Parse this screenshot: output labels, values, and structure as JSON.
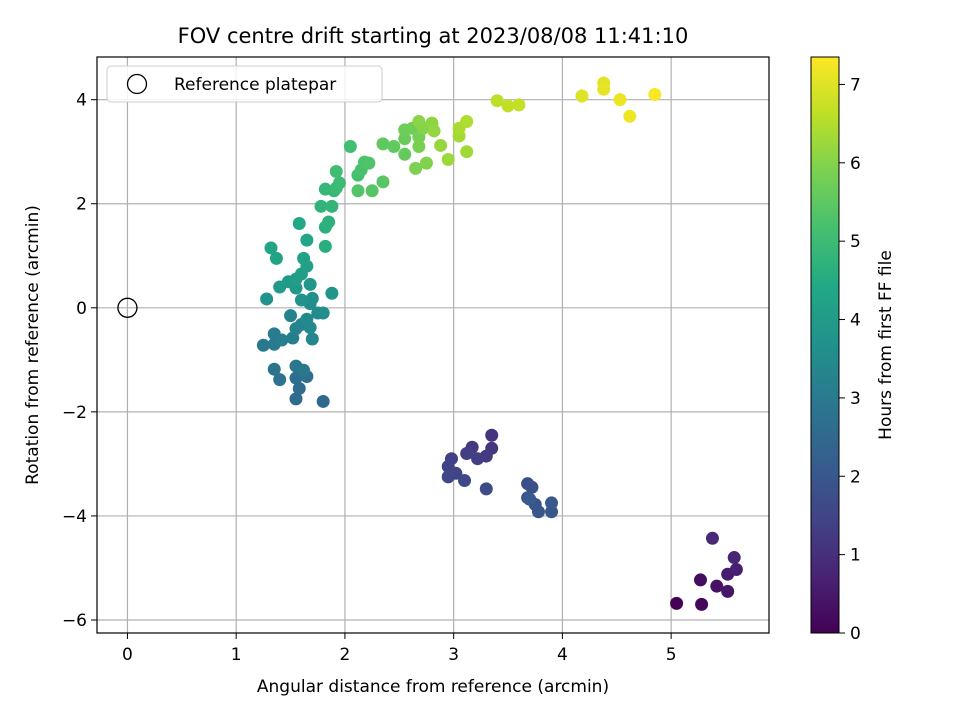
{
  "chart_data": {
    "type": "scatter",
    "title": "FOV centre drift starting at 2023/08/08 11:41:10",
    "xlabel": "Angular distance from reference (arcmin)",
    "ylabel": "Rotation from reference (arcmin)",
    "xlim": [
      -0.28,
      5.9
    ],
    "ylim": [
      -6.25,
      4.82
    ],
    "xticks": [
      0,
      1,
      2,
      3,
      4,
      5
    ],
    "yticks": [
      -6,
      -4,
      -2,
      0,
      2,
      4
    ],
    "xtick_labels": [
      "0",
      "1",
      "2",
      "3",
      "4",
      "5"
    ],
    "ytick_labels": [
      "−6",
      "−4",
      "−2",
      "0",
      "2",
      "4"
    ],
    "grid": true,
    "legend": {
      "position": "top-left",
      "label": "Reference platepar"
    },
    "reference_point": {
      "x": 0,
      "y": 0
    },
    "colorbar": {
      "label": "Hours from first FF file",
      "min": 0,
      "max": 7.35,
      "ticks": [
        0,
        1,
        2,
        3,
        4,
        5,
        6,
        7
      ],
      "tick_labels": [
        "0",
        "1",
        "2",
        "3",
        "4",
        "5",
        "6",
        "7"
      ],
      "colormap": "viridis"
    },
    "points": [
      {
        "x": 5.05,
        "y": -5.68,
        "t": 0.05
      },
      {
        "x": 5.28,
        "y": -5.7,
        "t": 0.15
      },
      {
        "x": 5.27,
        "y": -5.23,
        "t": 0.25
      },
      {
        "x": 5.42,
        "y": -5.35,
        "t": 0.35
      },
      {
        "x": 5.52,
        "y": -5.45,
        "t": 0.45
      },
      {
        "x": 5.52,
        "y": -5.12,
        "t": 0.55
      },
      {
        "x": 5.6,
        "y": -5.03,
        "t": 0.65
      },
      {
        "x": 5.58,
        "y": -4.8,
        "t": 0.75
      },
      {
        "x": 5.38,
        "y": -4.43,
        "t": 0.85
      },
      {
        "x": 3.35,
        "y": -2.45,
        "t": 1.1
      },
      {
        "x": 3.35,
        "y": -2.7,
        "t": 1.15
      },
      {
        "x": 3.17,
        "y": -2.68,
        "t": 1.2
      },
      {
        "x": 3.3,
        "y": -2.85,
        "t": 1.25
      },
      {
        "x": 3.22,
        "y": -2.9,
        "t": 1.3
      },
      {
        "x": 3.12,
        "y": -2.8,
        "t": 1.35
      },
      {
        "x": 2.98,
        "y": -2.9,
        "t": 1.4
      },
      {
        "x": 2.95,
        "y": -3.05,
        "t": 1.45
      },
      {
        "x": 3.02,
        "y": -3.18,
        "t": 1.5
      },
      {
        "x": 2.95,
        "y": -3.25,
        "t": 1.55
      },
      {
        "x": 3.1,
        "y": -3.32,
        "t": 1.6
      },
      {
        "x": 3.3,
        "y": -3.48,
        "t": 1.7
      },
      {
        "x": 3.68,
        "y": -3.38,
        "t": 1.75
      },
      {
        "x": 3.72,
        "y": -3.45,
        "t": 1.8
      },
      {
        "x": 3.68,
        "y": -3.65,
        "t": 1.85
      },
      {
        "x": 3.75,
        "y": -3.78,
        "t": 1.9
      },
      {
        "x": 3.78,
        "y": -3.92,
        "t": 1.95
      },
      {
        "x": 3.9,
        "y": -3.92,
        "t": 2.0
      },
      {
        "x": 3.9,
        "y": -3.75,
        "t": 2.05
      },
      {
        "x": 3.7,
        "y": -3.68,
        "t": 2.1
      },
      {
        "x": 1.8,
        "y": -1.8,
        "t": 2.5
      },
      {
        "x": 1.55,
        "y": -1.75,
        "t": 2.55
      },
      {
        "x": 1.58,
        "y": -1.55,
        "t": 2.6
      },
      {
        "x": 1.55,
        "y": -1.35,
        "t": 2.65
      },
      {
        "x": 1.65,
        "y": -1.32,
        "t": 2.7
      },
      {
        "x": 1.4,
        "y": -1.38,
        "t": 2.75
      },
      {
        "x": 1.35,
        "y": -1.18,
        "t": 2.8
      },
      {
        "x": 1.55,
        "y": -1.12,
        "t": 2.85
      },
      {
        "x": 1.62,
        "y": -1.2,
        "t": 2.9
      },
      {
        "x": 1.25,
        "y": -0.72,
        "t": 2.95
      },
      {
        "x": 1.35,
        "y": -0.7,
        "t": 3.0
      },
      {
        "x": 1.35,
        "y": -0.5,
        "t": 3.05
      },
      {
        "x": 1.42,
        "y": -0.62,
        "t": 3.1
      },
      {
        "x": 1.52,
        "y": -0.58,
        "t": 3.15
      },
      {
        "x": 1.55,
        "y": -0.4,
        "t": 3.2
      },
      {
        "x": 1.5,
        "y": -0.15,
        "t": 3.25
      },
      {
        "x": 1.6,
        "y": -0.32,
        "t": 3.3
      },
      {
        "x": 1.7,
        "y": -0.6,
        "t": 3.35
      },
      {
        "x": 1.68,
        "y": -0.38,
        "t": 3.4
      },
      {
        "x": 1.65,
        "y": -0.22,
        "t": 3.45
      },
      {
        "x": 1.75,
        "y": -0.1,
        "t": 3.5
      },
      {
        "x": 1.8,
        "y": -0.1,
        "t": 3.55
      },
      {
        "x": 1.68,
        "y": 0.08,
        "t": 3.6
      },
      {
        "x": 1.7,
        "y": 0.18,
        "t": 3.65
      },
      {
        "x": 1.6,
        "y": 0.15,
        "t": 3.7
      },
      {
        "x": 1.28,
        "y": 0.17,
        "t": 3.75
      },
      {
        "x": 1.88,
        "y": 0.28,
        "t": 3.8
      },
      {
        "x": 1.68,
        "y": 0.45,
        "t": 3.85
      },
      {
        "x": 1.55,
        "y": 0.38,
        "t": 3.9
      },
      {
        "x": 1.4,
        "y": 0.4,
        "t": 3.95
      },
      {
        "x": 1.48,
        "y": 0.5,
        "t": 4.0
      },
      {
        "x": 1.55,
        "y": 0.55,
        "t": 4.05
      },
      {
        "x": 1.6,
        "y": 0.65,
        "t": 4.1
      },
      {
        "x": 1.65,
        "y": 0.8,
        "t": 4.15
      },
      {
        "x": 1.62,
        "y": 0.95,
        "t": 4.2
      },
      {
        "x": 1.37,
        "y": 0.95,
        "t": 4.25
      },
      {
        "x": 1.32,
        "y": 1.15,
        "t": 4.3
      },
      {
        "x": 1.65,
        "y": 1.3,
        "t": 4.35
      },
      {
        "x": 1.58,
        "y": 1.62,
        "t": 4.4
      },
      {
        "x": 1.82,
        "y": 1.18,
        "t": 4.6
      },
      {
        "x": 1.82,
        "y": 1.55,
        "t": 4.65
      },
      {
        "x": 1.85,
        "y": 1.65,
        "t": 4.7
      },
      {
        "x": 1.78,
        "y": 1.95,
        "t": 4.75
      },
      {
        "x": 1.88,
        "y": 1.95,
        "t": 4.8
      },
      {
        "x": 1.82,
        "y": 2.28,
        "t": 4.85
      },
      {
        "x": 1.9,
        "y": 2.25,
        "t": 4.9
      },
      {
        "x": 1.92,
        "y": 2.3,
        "t": 4.95
      },
      {
        "x": 1.95,
        "y": 2.4,
        "t": 5.0
      },
      {
        "x": 1.92,
        "y": 2.62,
        "t": 5.05
      },
      {
        "x": 2.05,
        "y": 3.1,
        "t": 5.1
      },
      {
        "x": 2.12,
        "y": 2.55,
        "t": 5.15
      },
      {
        "x": 2.15,
        "y": 2.65,
        "t": 5.2
      },
      {
        "x": 2.18,
        "y": 2.8,
        "t": 5.25
      },
      {
        "x": 2.22,
        "y": 2.78,
        "t": 5.3
      },
      {
        "x": 2.12,
        "y": 2.25,
        "t": 5.35
      },
      {
        "x": 2.25,
        "y": 2.25,
        "t": 5.4
      },
      {
        "x": 2.35,
        "y": 2.42,
        "t": 5.45
      },
      {
        "x": 2.35,
        "y": 3.15,
        "t": 5.5
      },
      {
        "x": 2.45,
        "y": 3.1,
        "t": 5.55
      },
      {
        "x": 2.55,
        "y": 2.95,
        "t": 5.6
      },
      {
        "x": 2.55,
        "y": 3.25,
        "t": 5.65
      },
      {
        "x": 2.55,
        "y": 3.42,
        "t": 5.7
      },
      {
        "x": 2.62,
        "y": 3.45,
        "t": 5.75
      },
      {
        "x": 2.68,
        "y": 3.28,
        "t": 5.8
      },
      {
        "x": 2.68,
        "y": 3.1,
        "t": 5.85
      },
      {
        "x": 2.65,
        "y": 2.68,
        "t": 5.9
      },
      {
        "x": 2.75,
        "y": 2.78,
        "t": 5.95
      },
      {
        "x": 2.72,
        "y": 3.45,
        "t": 6.0
      },
      {
        "x": 2.68,
        "y": 3.58,
        "t": 6.05
      },
      {
        "x": 2.8,
        "y": 3.55,
        "t": 6.1
      },
      {
        "x": 2.82,
        "y": 3.4,
        "t": 6.15
      },
      {
        "x": 2.88,
        "y": 3.12,
        "t": 6.2
      },
      {
        "x": 2.95,
        "y": 2.85,
        "t": 6.25
      },
      {
        "x": 3.12,
        "y": 3.0,
        "t": 6.3
      },
      {
        "x": 3.05,
        "y": 3.3,
        "t": 6.35
      },
      {
        "x": 3.05,
        "y": 3.45,
        "t": 6.4
      },
      {
        "x": 3.12,
        "y": 3.58,
        "t": 6.45
      },
      {
        "x": 3.4,
        "y": 3.98,
        "t": 6.6
      },
      {
        "x": 3.5,
        "y": 3.88,
        "t": 6.65
      },
      {
        "x": 3.6,
        "y": 3.9,
        "t": 6.7
      },
      {
        "x": 4.18,
        "y": 4.07,
        "t": 7.0
      },
      {
        "x": 4.38,
        "y": 4.32,
        "t": 7.05
      },
      {
        "x": 4.38,
        "y": 4.2,
        "t": 7.1
      },
      {
        "x": 4.53,
        "y": 4.0,
        "t": 7.15
      },
      {
        "x": 4.62,
        "y": 3.68,
        "t": 7.2
      },
      {
        "x": 4.85,
        "y": 4.1,
        "t": 7.3
      }
    ]
  }
}
